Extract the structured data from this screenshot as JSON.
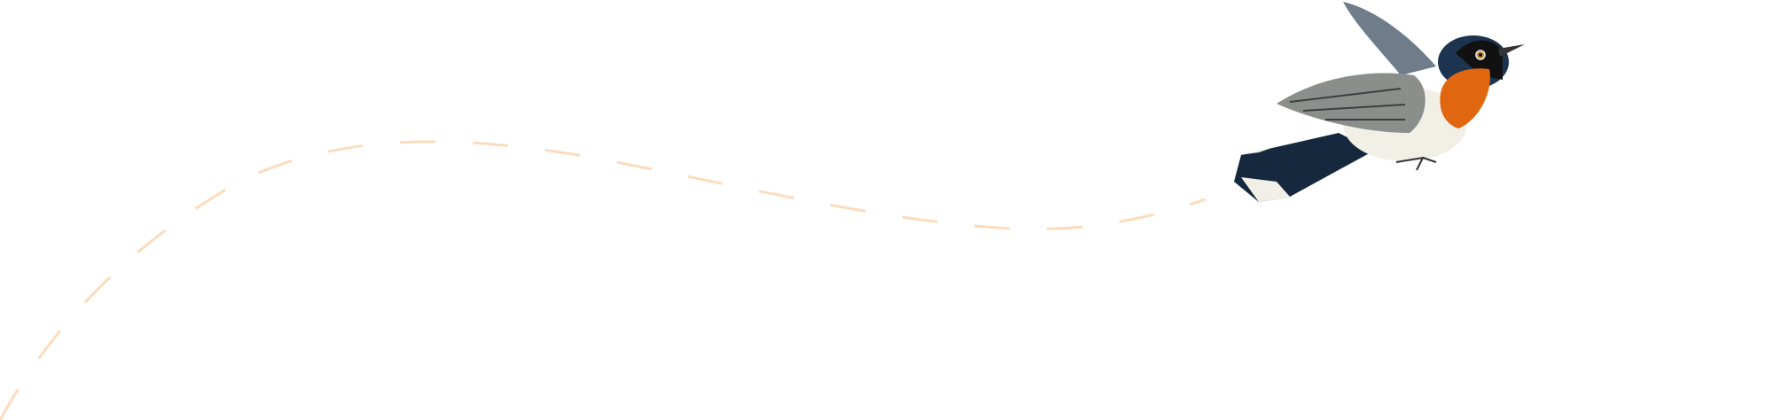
{
  "colors": {
    "background": "#ffffff",
    "flight_path": "#fcdcbc",
    "bird_throat": "#e0660f",
    "bird_back": "#1f3a55",
    "bird_wing": "#8a8f8c",
    "bird_belly": "#f2efe6"
  },
  "illustration": {
    "subject": "bird-icon",
    "path_style": "dashed"
  }
}
